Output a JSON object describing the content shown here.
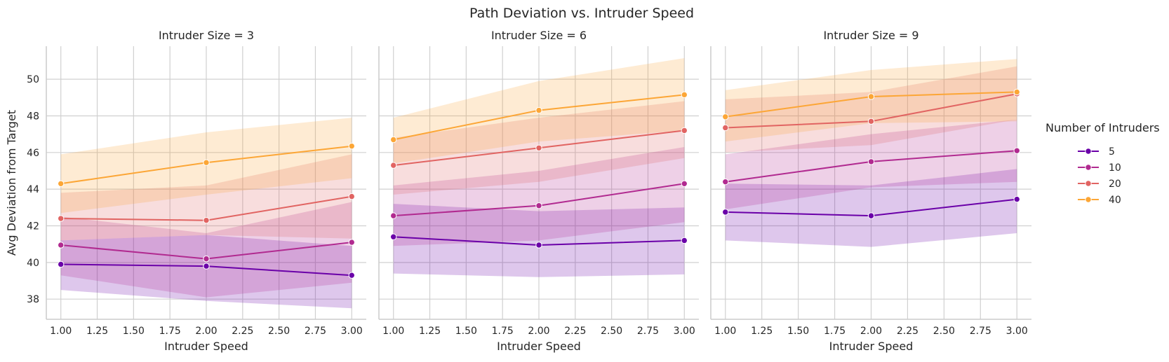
{
  "figure_title": "Path Deviation vs. Intruder Speed",
  "legend": {
    "title": "Number of Intruders",
    "placement": "right"
  },
  "series_styles": [
    {
      "name": "5",
      "color": "#6a00a8"
    },
    {
      "name": "10",
      "color": "#b12a90"
    },
    {
      "name": "20",
      "color": "#e16462"
    },
    {
      "name": "40",
      "color": "#fca636"
    }
  ],
  "chart_data": [
    {
      "type": "line",
      "title": "Intruder Size = 3",
      "xlabel": "Intruder Speed",
      "ylabel": "Avg Deviation from Target",
      "x": [
        1.0,
        2.0,
        3.0
      ],
      "xticks": [
        "1.00",
        "1.25",
        "1.50",
        "1.75",
        "2.00",
        "2.25",
        "2.50",
        "2.75",
        "3.00"
      ],
      "yticks": [
        "38",
        "40",
        "42",
        "44",
        "46",
        "48",
        "50"
      ],
      "xlim": [
        0.9,
        3.1
      ],
      "ylim": [
        36.9,
        51.8
      ],
      "grid": true,
      "series": [
        {
          "name": "5",
          "values": [
            39.9,
            39.8,
            39.3
          ],
          "lower": [
            38.5,
            37.9,
            37.5
          ],
          "upper": [
            41.2,
            41.5,
            40.9
          ]
        },
        {
          "name": "10",
          "values": [
            40.95,
            40.2,
            41.1
          ],
          "lower": [
            39.3,
            38.1,
            38.9
          ],
          "upper": [
            42.5,
            41.6,
            43.3
          ]
        },
        {
          "name": "20",
          "values": [
            42.4,
            42.3,
            43.6
          ],
          "lower": [
            41.2,
            41.5,
            41.3
          ],
          "upper": [
            43.8,
            44.2,
            45.9
          ]
        },
        {
          "name": "40",
          "values": [
            44.3,
            45.45,
            46.35
          ],
          "lower": [
            42.7,
            43.7,
            44.6
          ],
          "upper": [
            45.9,
            47.1,
            47.9
          ]
        }
      ]
    },
    {
      "type": "line",
      "title": "Intruder Size = 6",
      "xlabel": "Intruder Speed",
      "ylabel": "",
      "x": [
        1.0,
        2.0,
        3.0
      ],
      "xticks": [
        "1.00",
        "1.25",
        "1.50",
        "1.75",
        "2.00",
        "2.25",
        "2.50",
        "2.75",
        "3.00"
      ],
      "yticks": [],
      "xlim": [
        0.9,
        3.1
      ],
      "ylim": [
        36.9,
        51.8
      ],
      "grid": true,
      "series": [
        {
          "name": "5",
          "values": [
            41.4,
            40.95,
            41.2
          ],
          "lower": [
            39.4,
            39.2,
            39.35
          ],
          "upper": [
            43.2,
            42.8,
            43.0
          ]
        },
        {
          "name": "10",
          "values": [
            42.55,
            43.1,
            44.3
          ],
          "lower": [
            40.9,
            41.2,
            42.2
          ],
          "upper": [
            44.2,
            45.0,
            46.3
          ]
        },
        {
          "name": "20",
          "values": [
            45.3,
            46.25,
            47.2
          ],
          "lower": [
            43.7,
            44.4,
            45.7
          ],
          "upper": [
            46.8,
            47.9,
            48.8
          ]
        },
        {
          "name": "40",
          "values": [
            46.7,
            48.3,
            49.15
          ],
          "lower": [
            45.4,
            46.6,
            47.2
          ],
          "upper": [
            47.9,
            49.9,
            51.15
          ]
        }
      ]
    },
    {
      "type": "line",
      "title": "Intruder Size = 9",
      "xlabel": "Intruder Speed",
      "ylabel": "",
      "x": [
        1.0,
        2.0,
        3.0
      ],
      "xticks": [
        "1.00",
        "1.25",
        "1.50",
        "1.75",
        "2.00",
        "2.25",
        "2.50",
        "2.75",
        "3.00"
      ],
      "yticks": [],
      "xlim": [
        0.9,
        3.1
      ],
      "ylim": [
        36.9,
        51.8
      ],
      "grid": true,
      "series": [
        {
          "name": "5",
          "values": [
            42.75,
            42.55,
            43.45
          ],
          "lower": [
            41.2,
            40.85,
            41.6
          ],
          "upper": [
            44.3,
            44.2,
            45.1
          ]
        },
        {
          "name": "10",
          "values": [
            44.4,
            45.5,
            46.1
          ],
          "lower": [
            42.9,
            44.1,
            44.4
          ],
          "upper": [
            45.9,
            47.0,
            47.8
          ]
        },
        {
          "name": "20",
          "values": [
            47.35,
            47.7,
            49.2
          ],
          "lower": [
            46.0,
            46.4,
            47.8
          ],
          "upper": [
            48.9,
            49.3,
            50.7
          ]
        },
        {
          "name": "40",
          "values": [
            47.95,
            49.05,
            49.3
          ],
          "lower": [
            46.6,
            47.6,
            47.7
          ],
          "upper": [
            49.4,
            50.5,
            51.1
          ]
        }
      ]
    }
  ]
}
